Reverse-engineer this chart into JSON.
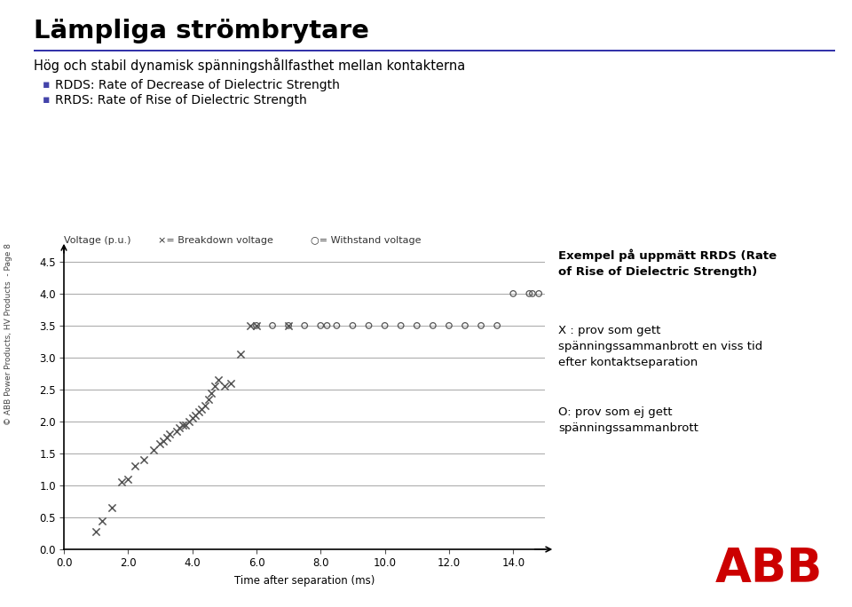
{
  "title_main": "Lämpliga strömbrytare",
  "subtitle": "Hög och stabil dynamisk spänningshållfasthet mellan kontakterna",
  "bullet1": "RDDS: Rate of Decrease of Dielectric Strength",
  "bullet2": "RRDS: Rate of Rise of Dielectric Strength",
  "ylabel": "Voltage (p.u.)",
  "xlabel": "Time after separation (ms)",
  "legend_x_label": "×= Breakdown voltage",
  "legend_o_label": "○= Withstand voltage",
  "annotation1": "Exempel på uppmätt RRDS (Rate\nof Rise of Dielectric Strength)",
  "annotation2": "X : prov som gett\nspänningssammanbrott en viss tid\nefter kontaktseparation",
  "annotation3": "O: prov som ej gett\nspänningssammanbrott",
  "side_text": "© ABB Power Products, HV Products  - Page 8",
  "xlim": [
    0.0,
    15.0
  ],
  "ylim": [
    0,
    4.7
  ],
  "yticks": [
    0,
    0.5,
    1,
    1.5,
    2,
    2.5,
    3,
    3.5,
    4,
    4.5
  ],
  "xticks": [
    0.0,
    2.0,
    4.0,
    6.0,
    8.0,
    10.0,
    12.0,
    14.0
  ],
  "breakdown_x": [
    1.0,
    1.2,
    1.5,
    1.8,
    2.0,
    2.2,
    2.5,
    2.8,
    3.0,
    3.1,
    3.2,
    3.3,
    3.5,
    3.6,
    3.7,
    3.8,
    3.9,
    4.0,
    4.1,
    4.2,
    4.3,
    4.4,
    4.5,
    4.6,
    4.7,
    4.8,
    5.0,
    5.2,
    5.5,
    5.8,
    6.0,
    7.0
  ],
  "breakdown_y": [
    0.28,
    0.45,
    0.65,
    1.05,
    1.1,
    1.3,
    1.4,
    1.55,
    1.65,
    1.7,
    1.75,
    1.8,
    1.85,
    1.9,
    1.95,
    1.95,
    2.0,
    2.05,
    2.1,
    2.15,
    2.2,
    2.25,
    2.35,
    2.45,
    2.55,
    2.65,
    2.55,
    2.6,
    3.05,
    3.5,
    3.5,
    3.5
  ],
  "withstand_x": [
    6.0,
    6.5,
    7.0,
    7.5,
    8.0,
    8.2,
    8.5,
    9.0,
    9.5,
    10.0,
    10.5,
    11.0,
    11.5,
    12.0,
    12.5,
    13.0,
    13.5,
    14.0,
    14.5,
    14.6,
    14.8
  ],
  "withstand_y": [
    3.5,
    3.5,
    3.5,
    3.5,
    3.5,
    3.5,
    3.5,
    3.5,
    3.5,
    3.5,
    3.5,
    3.5,
    3.5,
    3.5,
    3.5,
    3.5,
    3.5,
    4.0,
    4.0,
    4.0,
    4.0
  ],
  "bg_color": "#ffffff",
  "text_color": "#000000",
  "grid_color": "#aaaaaa",
  "title_color": "#000000",
  "bullet_color": "#4444aa",
  "abb_red": "#cc0000"
}
